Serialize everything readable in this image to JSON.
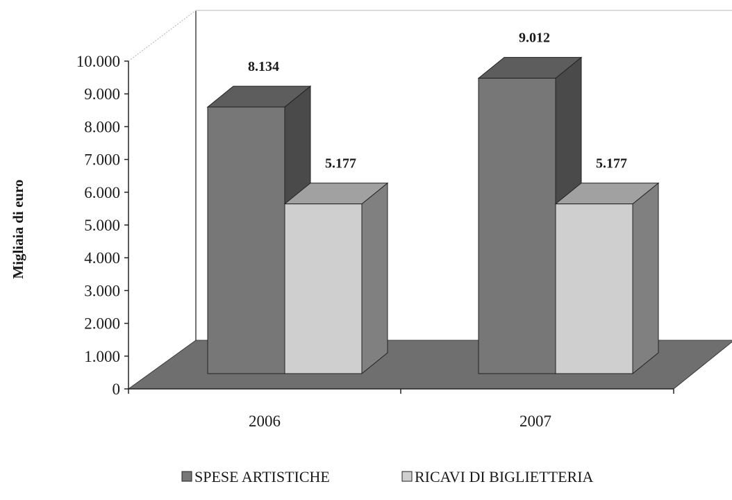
{
  "chart_data": {
    "type": "bar",
    "style": "3d-clustered-column",
    "categories": [
      "2006",
      "2007"
    ],
    "series": [
      {
        "name": "SPESE ARTISTICHE",
        "values": [
          8134,
          9012
        ],
        "labels": [
          "8.134",
          "9.012"
        ],
        "color": "#777777"
      },
      {
        "name": "RICAVI DI BIGLIETTERIA",
        "values": [
          5177,
          5177
        ],
        "labels": [
          "5.177",
          "5.177"
        ],
        "color": "#cfcfcf"
      }
    ],
    "ylabel": "Migliaia di euro",
    "ylim": [
      0,
      10000
    ],
    "yticks": [
      0,
      1000,
      2000,
      3000,
      4000,
      5000,
      6000,
      7000,
      8000,
      9000,
      10000
    ],
    "ytick_labels": [
      "0",
      "1.000",
      "2.000",
      "3.000",
      "4.000",
      "5.000",
      "6.000",
      "7.000",
      "8.000",
      "9.000",
      "10.000"
    ],
    "legend_position": "bottom",
    "floor_color": "#6f6f6f",
    "grid": false
  }
}
